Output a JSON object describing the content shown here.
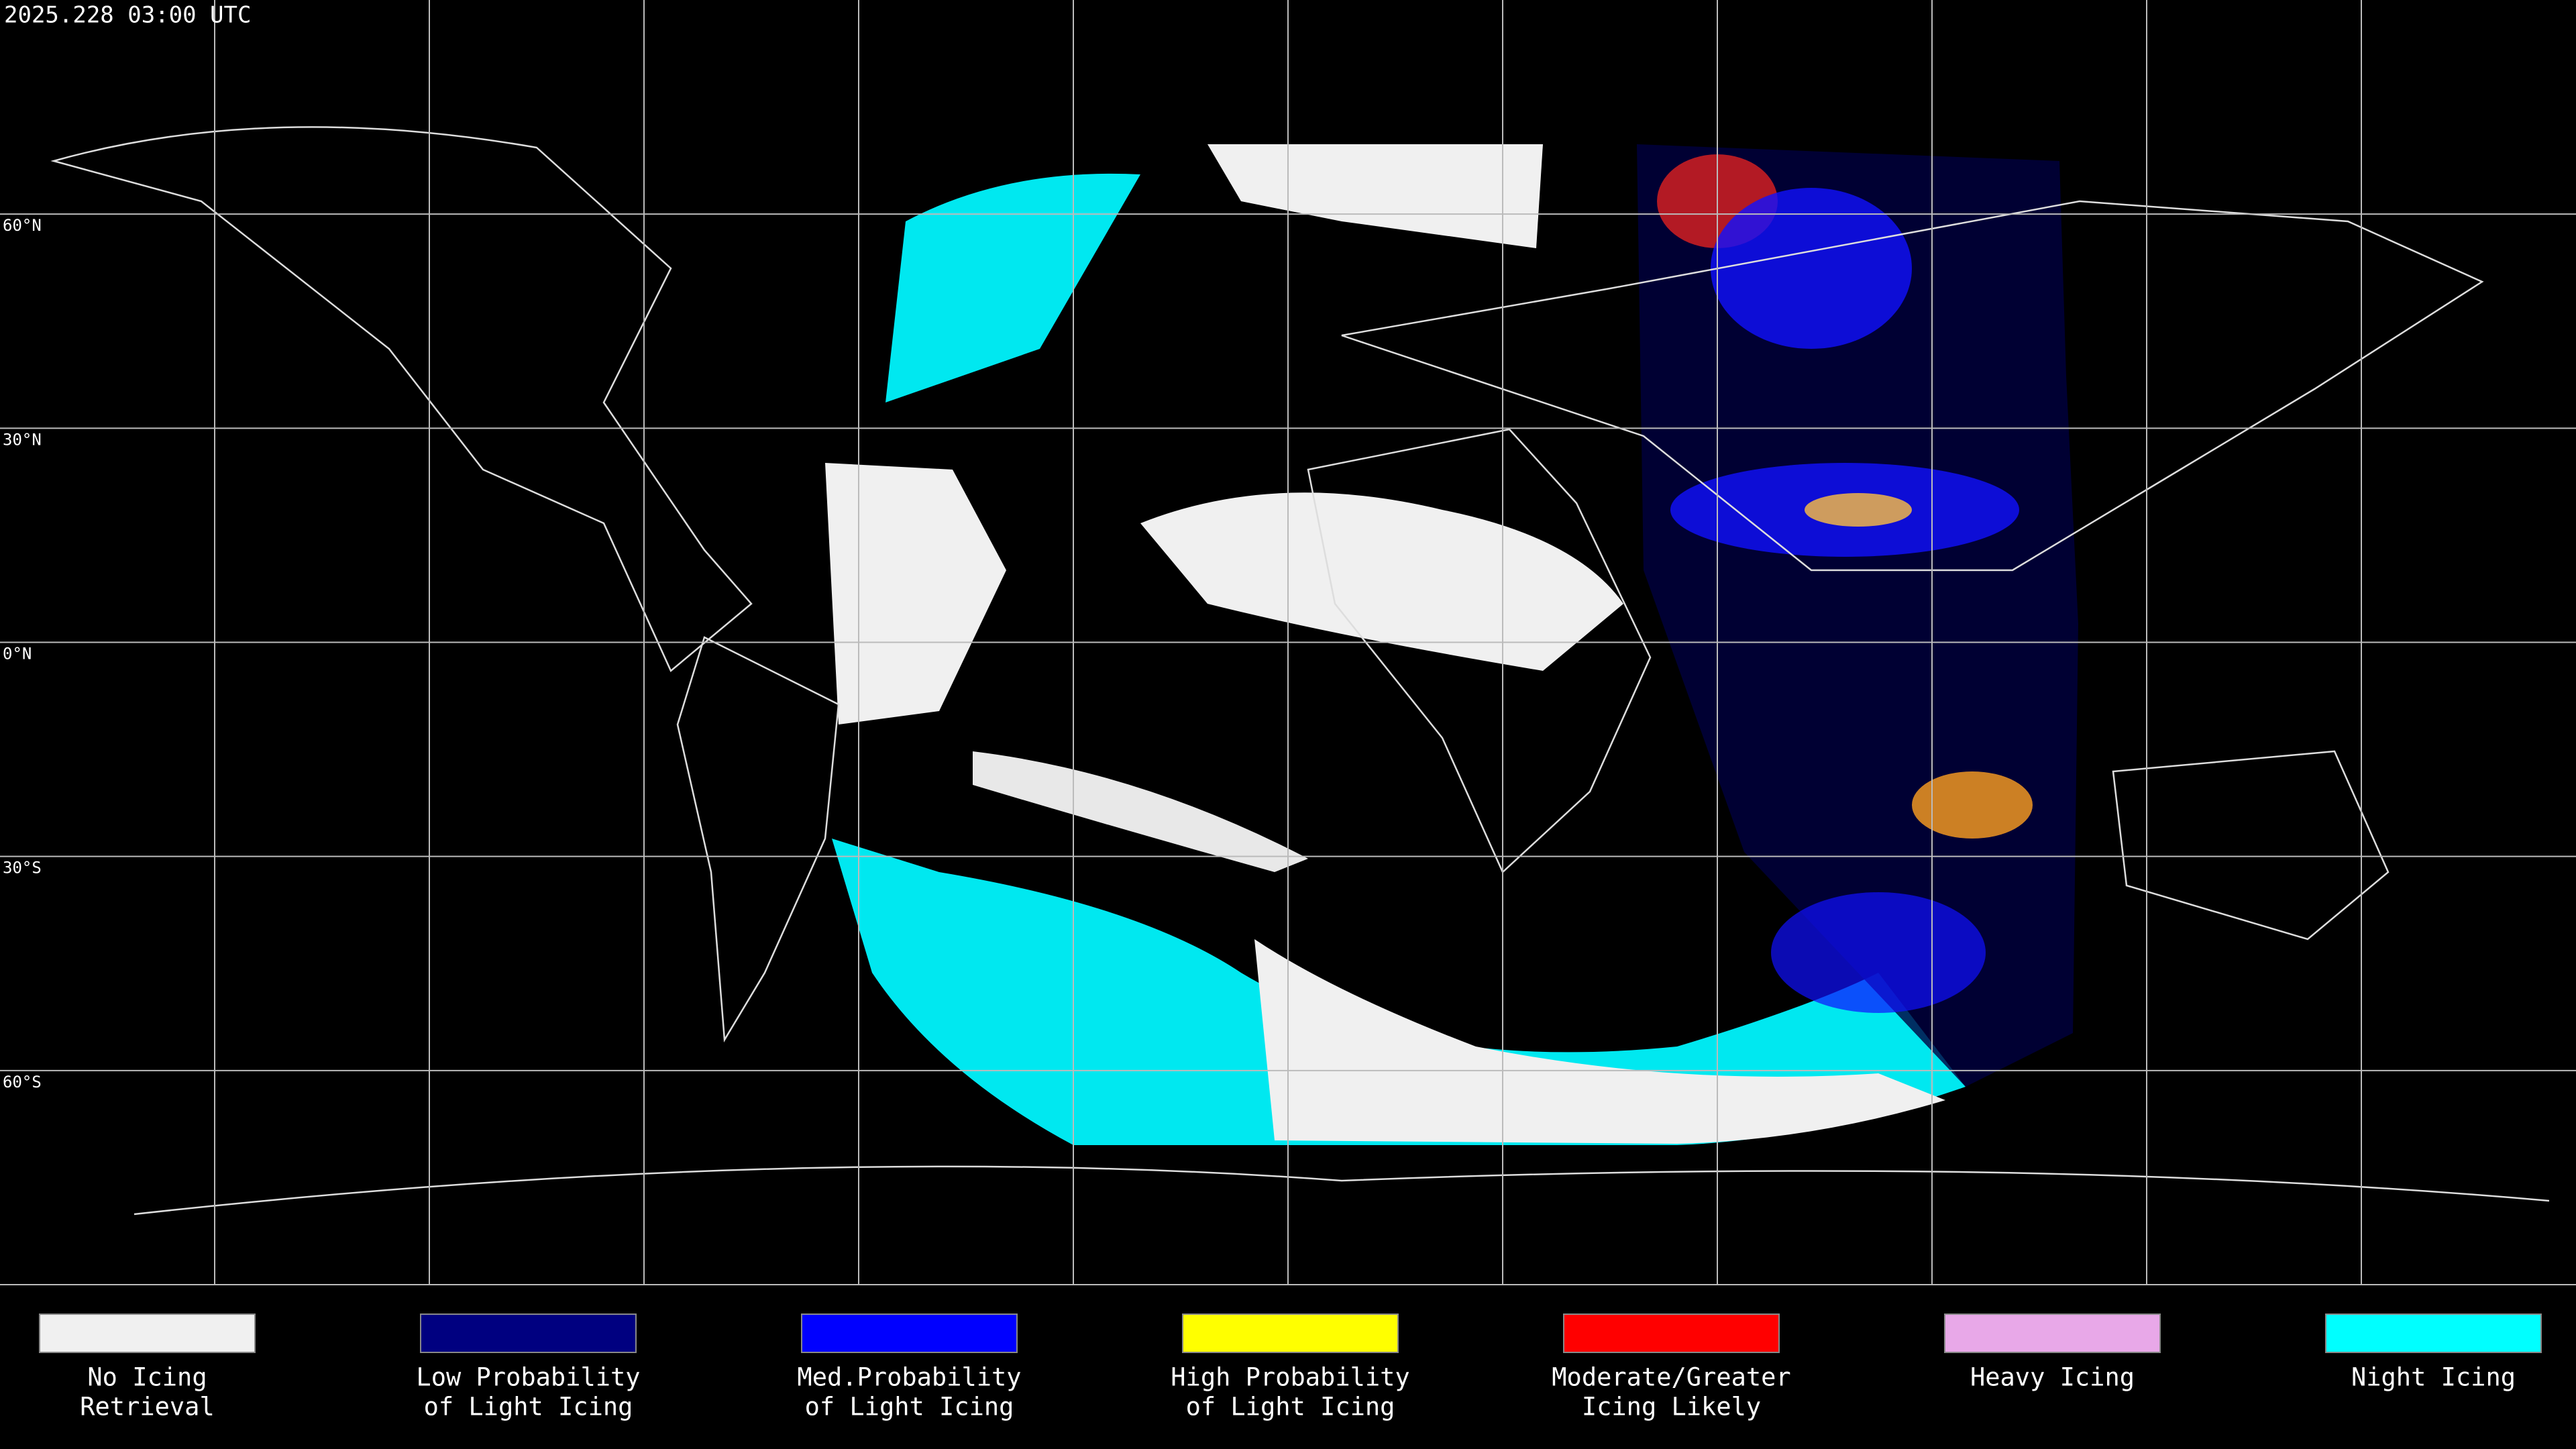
{
  "header": {
    "title": "2025.228 03:00 UTC"
  },
  "latitudes": [
    {
      "value": 60,
      "label": "60°N"
    },
    {
      "value": 30,
      "label": "30°N"
    },
    {
      "value": 0,
      "label": "0°N"
    },
    {
      "value": -30,
      "label": "30°S"
    },
    {
      "value": -60,
      "label": "60°S"
    }
  ],
  "legend": [
    {
      "lines": [
        "No Icing",
        "Retrieval"
      ],
      "color": "#f0f0f0"
    },
    {
      "lines": [
        "Low Probability",
        "of Light Icing"
      ],
      "color": "#000080"
    },
    {
      "lines": [
        "Med.Probability",
        "of Light Icing"
      ],
      "color": "#0000ff"
    },
    {
      "lines": [
        "High Probability",
        "of Light Icing"
      ],
      "color": "#ffff00"
    },
    {
      "lines": [
        "Moderate/Greater",
        "Icing Likely"
      ],
      "color": "#ff0000"
    },
    {
      "lines": [
        "Heavy Icing"
      ],
      "color": "#e8a8e8"
    },
    {
      "lines": [
        "Night Icing"
      ],
      "color": "#00ffff"
    }
  ]
}
